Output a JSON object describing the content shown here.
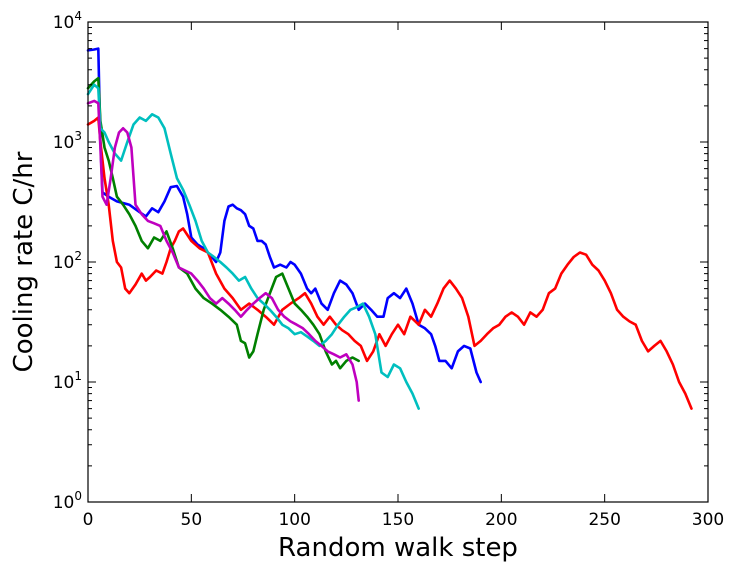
{
  "chart_data": {
    "type": "line",
    "title": "",
    "xlabel": "Random walk step",
    "ylabel": "Cooling rate C/hr",
    "xlim": [
      0,
      300
    ],
    "ylim": [
      1,
      10000
    ],
    "yscale": "log",
    "grid": false,
    "x_ticks": [
      0,
      50,
      100,
      150,
      200,
      250,
      300
    ],
    "x_tick_labels": [
      "0",
      "50",
      "100",
      "150",
      "200",
      "250",
      "300"
    ],
    "y_tick_labels": [
      {
        "value": 1,
        "base": "10",
        "exp": "0"
      },
      {
        "value": 10,
        "base": "10",
        "exp": "1"
      },
      {
        "value": 100,
        "base": "10",
        "exp": "2"
      },
      {
        "value": 1000,
        "base": "10",
        "exp": "3"
      },
      {
        "value": 10000,
        "base": "10",
        "exp": "4"
      }
    ],
    "series": [
      {
        "color": "#0000ff",
        "points": [
          [
            0,
            5800
          ],
          [
            3,
            5900
          ],
          [
            5,
            6000
          ],
          [
            6,
            1000
          ],
          [
            7,
            380
          ],
          [
            10,
            350
          ],
          [
            14,
            320
          ],
          [
            20,
            300
          ],
          [
            25,
            260
          ],
          [
            28,
            240
          ],
          [
            31,
            280
          ],
          [
            34,
            260
          ],
          [
            37,
            320
          ],
          [
            40,
            420
          ],
          [
            43,
            430
          ],
          [
            46,
            350
          ],
          [
            48,
            250
          ],
          [
            50,
            160
          ],
          [
            53,
            140
          ],
          [
            56,
            130
          ],
          [
            60,
            110
          ],
          [
            62,
            100
          ],
          [
            64,
            120
          ],
          [
            66,
            220
          ],
          [
            68,
            290
          ],
          [
            70,
            300
          ],
          [
            72,
            280
          ],
          [
            74,
            270
          ],
          [
            76,
            250
          ],
          [
            78,
            200
          ],
          [
            80,
            190
          ],
          [
            82,
            150
          ],
          [
            84,
            150
          ],
          [
            86,
            140
          ],
          [
            88,
            110
          ],
          [
            90,
            90
          ],
          [
            93,
            95
          ],
          [
            96,
            90
          ],
          [
            98,
            100
          ],
          [
            100,
            95
          ],
          [
            103,
            80
          ],
          [
            106,
            60
          ],
          [
            108,
            55
          ],
          [
            110,
            60
          ],
          [
            113,
            45
          ],
          [
            116,
            40
          ],
          [
            119,
            55
          ],
          [
            122,
            70
          ],
          [
            125,
            65
          ],
          [
            128,
            55
          ],
          [
            131,
            40
          ],
          [
            134,
            45
          ],
          [
            137,
            40
          ],
          [
            140,
            35
          ],
          [
            143,
            35
          ],
          [
            145,
            50
          ],
          [
            148,
            55
          ],
          [
            151,
            50
          ],
          [
            154,
            60
          ],
          [
            157,
            45
          ],
          [
            160,
            30
          ],
          [
            163,
            28
          ],
          [
            166,
            25
          ],
          [
            168,
            20
          ],
          [
            170,
            15
          ],
          [
            173,
            15
          ],
          [
            176,
            13
          ],
          [
            179,
            18
          ],
          [
            182,
            20
          ],
          [
            185,
            19
          ],
          [
            188,
            12
          ],
          [
            190,
            10
          ]
        ]
      },
      {
        "color": "#ff0000",
        "points": [
          [
            0,
            1400
          ],
          [
            3,
            1500
          ],
          [
            5,
            1600
          ],
          [
            6,
            1000
          ],
          [
            8,
            500
          ],
          [
            10,
            300
          ],
          [
            12,
            150
          ],
          [
            14,
            100
          ],
          [
            16,
            90
          ],
          [
            18,
            60
          ],
          [
            20,
            55
          ],
          [
            23,
            65
          ],
          [
            26,
            80
          ],
          [
            28,
            70
          ],
          [
            30,
            75
          ],
          [
            33,
            85
          ],
          [
            36,
            80
          ],
          [
            38,
            100
          ],
          [
            40,
            130
          ],
          [
            42,
            150
          ],
          [
            44,
            180
          ],
          [
            46,
            190
          ],
          [
            50,
            150
          ],
          [
            54,
            130
          ],
          [
            58,
            120
          ],
          [
            62,
            80
          ],
          [
            66,
            60
          ],
          [
            70,
            50
          ],
          [
            74,
            40
          ],
          [
            78,
            45
          ],
          [
            82,
            40
          ],
          [
            86,
            35
          ],
          [
            90,
            30
          ],
          [
            94,
            40
          ],
          [
            98,
            45
          ],
          [
            102,
            50
          ],
          [
            105,
            55
          ],
          [
            108,
            45
          ],
          [
            111,
            35
          ],
          [
            114,
            30
          ],
          [
            117,
            35
          ],
          [
            120,
            30
          ],
          [
            123,
            27
          ],
          [
            126,
            25
          ],
          [
            129,
            22
          ],
          [
            132,
            20
          ],
          [
            135,
            15
          ],
          [
            138,
            18
          ],
          [
            141,
            25
          ],
          [
            144,
            20
          ],
          [
            147,
            25
          ],
          [
            150,
            30
          ],
          [
            153,
            25
          ],
          [
            156,
            35
          ],
          [
            160,
            30
          ],
          [
            163,
            40
          ],
          [
            166,
            35
          ],
          [
            169,
            45
          ],
          [
            172,
            60
          ],
          [
            175,
            70
          ],
          [
            178,
            60
          ],
          [
            181,
            50
          ],
          [
            184,
            35
          ],
          [
            187,
            20
          ],
          [
            190,
            22
          ],
          [
            193,
            25
          ],
          [
            196,
            28
          ],
          [
            199,
            30
          ],
          [
            202,
            35
          ],
          [
            205,
            38
          ],
          [
            208,
            35
          ],
          [
            211,
            30
          ],
          [
            214,
            38
          ],
          [
            217,
            35
          ],
          [
            220,
            40
          ],
          [
            223,
            55
          ],
          [
            226,
            60
          ],
          [
            229,
            80
          ],
          [
            232,
            95
          ],
          [
            235,
            110
          ],
          [
            238,
            120
          ],
          [
            241,
            115
          ],
          [
            244,
            95
          ],
          [
            247,
            85
          ],
          [
            250,
            70
          ],
          [
            253,
            55
          ],
          [
            256,
            40
          ],
          [
            259,
            35
          ],
          [
            262,
            32
          ],
          [
            265,
            30
          ],
          [
            268,
            22
          ],
          [
            271,
            18
          ],
          [
            274,
            20
          ],
          [
            277,
            22
          ],
          [
            280,
            18
          ],
          [
            283,
            14
          ],
          [
            286,
            10
          ],
          [
            289,
            8
          ],
          [
            292,
            6
          ]
        ]
      },
      {
        "color": "#008000",
        "points": [
          [
            0,
            2800
          ],
          [
            3,
            3200
          ],
          [
            5,
            3400
          ],
          [
            6,
            1500
          ],
          [
            8,
            900
          ],
          [
            10,
            700
          ],
          [
            12,
            500
          ],
          [
            14,
            350
          ],
          [
            17,
            300
          ],
          [
            20,
            250
          ],
          [
            23,
            200
          ],
          [
            26,
            150
          ],
          [
            29,
            130
          ],
          [
            32,
            160
          ],
          [
            35,
            150
          ],
          [
            38,
            180
          ],
          [
            41,
            130
          ],
          [
            44,
            90
          ],
          [
            48,
            80
          ],
          [
            52,
            60
          ],
          [
            56,
            50
          ],
          [
            60,
            45
          ],
          [
            64,
            40
          ],
          [
            68,
            35
          ],
          [
            72,
            30
          ],
          [
            74,
            22
          ],
          [
            76,
            21
          ],
          [
            78,
            16
          ],
          [
            80,
            18
          ],
          [
            82,
            25
          ],
          [
            85,
            40
          ],
          [
            88,
            55
          ],
          [
            91,
            75
          ],
          [
            94,
            80
          ],
          [
            97,
            60
          ],
          [
            100,
            45
          ],
          [
            103,
            40
          ],
          [
            106,
            35
          ],
          [
            109,
            30
          ],
          [
            112,
            25
          ],
          [
            115,
            18
          ],
          [
            118,
            14
          ],
          [
            120,
            15
          ],
          [
            122,
            13
          ],
          [
            125,
            15
          ],
          [
            128,
            16
          ],
          [
            131,
            15
          ]
        ]
      },
      {
        "color": "#00bfbf",
        "points": [
          [
            0,
            2500
          ],
          [
            3,
            3000
          ],
          [
            5,
            2800
          ],
          [
            6,
            1300
          ],
          [
            8,
            1200
          ],
          [
            10,
            1000
          ],
          [
            13,
            800
          ],
          [
            16,
            700
          ],
          [
            19,
            1000
          ],
          [
            22,
            1400
          ],
          [
            25,
            1600
          ],
          [
            28,
            1500
          ],
          [
            31,
            1700
          ],
          [
            34,
            1600
          ],
          [
            37,
            1300
          ],
          [
            40,
            800
          ],
          [
            43,
            500
          ],
          [
            46,
            400
          ],
          [
            49,
            300
          ],
          [
            52,
            220
          ],
          [
            55,
            150
          ],
          [
            58,
            120
          ],
          [
            61,
            110
          ],
          [
            64,
            100
          ],
          [
            67,
            90
          ],
          [
            70,
            80
          ],
          [
            73,
            70
          ],
          [
            76,
            75
          ],
          [
            79,
            60
          ],
          [
            82,
            50
          ],
          [
            85,
            45
          ],
          [
            88,
            40
          ],
          [
            91,
            35
          ],
          [
            94,
            30
          ],
          [
            97,
            28
          ],
          [
            100,
            25
          ],
          [
            103,
            26
          ],
          [
            106,
            24
          ],
          [
            109,
            22
          ],
          [
            112,
            20
          ],
          [
            115,
            22
          ],
          [
            118,
            25
          ],
          [
            121,
            30
          ],
          [
            124,
            35
          ],
          [
            127,
            40
          ],
          [
            130,
            42
          ],
          [
            133,
            45
          ],
          [
            136,
            35
          ],
          [
            139,
            25
          ],
          [
            142,
            12
          ],
          [
            145,
            11
          ],
          [
            148,
            14
          ],
          [
            151,
            13
          ],
          [
            154,
            10
          ],
          [
            157,
            8
          ],
          [
            160,
            6
          ]
        ]
      },
      {
        "color": "#bf00bf",
        "points": [
          [
            0,
            2100
          ],
          [
            3,
            2200
          ],
          [
            5,
            2100
          ],
          [
            6,
            900
          ],
          [
            7,
            350
          ],
          [
            9,
            300
          ],
          [
            11,
            500
          ],
          [
            13,
            900
          ],
          [
            15,
            1200
          ],
          [
            17,
            1300
          ],
          [
            19,
            1200
          ],
          [
            21,
            900
          ],
          [
            23,
            300
          ],
          [
            26,
            250
          ],
          [
            29,
            220
          ],
          [
            32,
            210
          ],
          [
            35,
            200
          ],
          [
            38,
            150
          ],
          [
            41,
            120
          ],
          [
            44,
            90
          ],
          [
            47,
            85
          ],
          [
            50,
            80
          ],
          [
            53,
            70
          ],
          [
            56,
            60
          ],
          [
            59,
            50
          ],
          [
            62,
            45
          ],
          [
            65,
            50
          ],
          [
            68,
            45
          ],
          [
            71,
            40
          ],
          [
            74,
            35
          ],
          [
            77,
            40
          ],
          [
            80,
            45
          ],
          [
            83,
            50
          ],
          [
            86,
            55
          ],
          [
            89,
            50
          ],
          [
            92,
            40
          ],
          [
            95,
            35
          ],
          [
            98,
            32
          ],
          [
            101,
            30
          ],
          [
            104,
            28
          ],
          [
            107,
            25
          ],
          [
            110,
            22
          ],
          [
            113,
            20
          ],
          [
            116,
            18
          ],
          [
            119,
            17
          ],
          [
            122,
            16
          ],
          [
            125,
            17
          ],
          [
            128,
            14
          ],
          [
            130,
            10
          ],
          [
            131,
            7
          ]
        ]
      }
    ]
  }
}
